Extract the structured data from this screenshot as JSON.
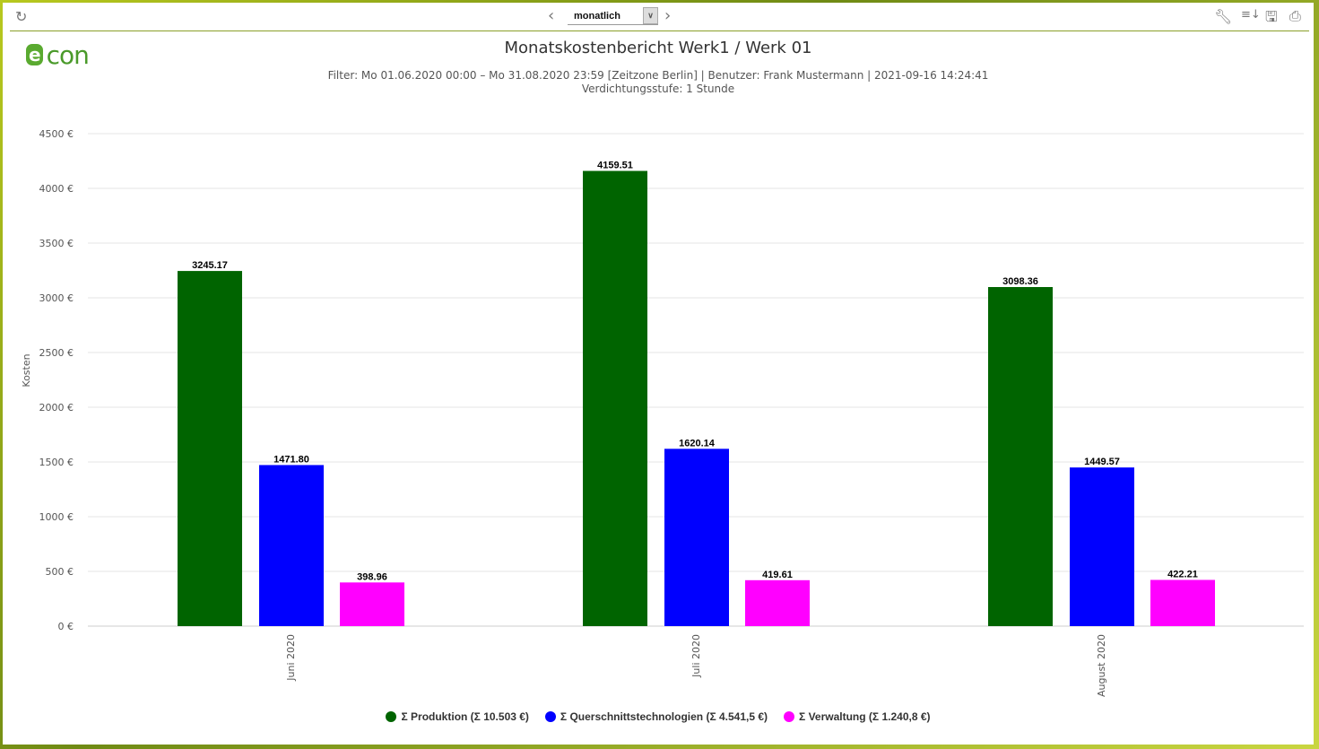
{
  "toolbar": {
    "period_select": "monatlich",
    "icons": [
      "refresh-icon",
      "chevron-left-icon",
      "chevron-right-icon",
      "wrench-icon",
      "sort-icon",
      "save-icon",
      "print-icon"
    ]
  },
  "logo": "econ",
  "header": {
    "title": "Monatskostenbericht Werk1  / Werk 01",
    "subtitle_line1": "Filter: Mo 01.06.2020 00:00 – Mo 31.08.2020 23:59 [Zeitzone Berlin] | Benutzer: Frank Mustermann | 2021-09-16 14:24:41",
    "subtitle_line2": "Verdichtungsstufe: 1 Stunde"
  },
  "chart_data": {
    "type": "bar",
    "ylabel": "Kosten",
    "ylim": [
      0,
      4500
    ],
    "yticks": [
      "0 €",
      "500 €",
      "1000 €",
      "1500 €",
      "2000 €",
      "2500 €",
      "3000 €",
      "3500 €",
      "4000 €",
      "4500 €"
    ],
    "grid": true,
    "legend_position": "bottom",
    "categories": [
      "Juni 2020",
      "Juli 2020",
      "August 2020"
    ],
    "series": [
      {
        "name": "Σ Produktion (Σ 10.503 €)",
        "color": "#006400",
        "values": [
          3245.17,
          4159.51,
          3098.36
        ]
      },
      {
        "name": "Σ Querschnittstechnologien (Σ 4.541,5 €)",
        "color": "#0000ff",
        "values": [
          1471.8,
          1620.14,
          1449.57
        ]
      },
      {
        "name": "Σ Verwaltung (Σ 1.240,8 €)",
        "color": "#ff00ff",
        "values": [
          398.96,
          419.61,
          422.21
        ]
      }
    ]
  }
}
